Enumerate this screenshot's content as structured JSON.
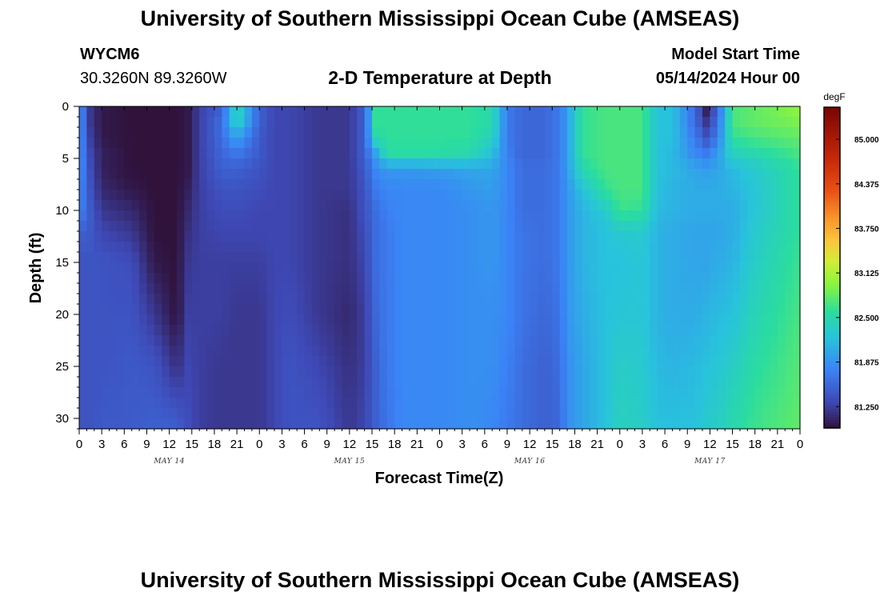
{
  "header": {
    "title": "University of Southern Mississippi Ocean Cube (AMSEAS)",
    "station_id": "WYCM6",
    "station_coords": "30.3260N  89.3260W",
    "model_start_label": "Model Start Time",
    "model_start_value": "05/14/2024 Hour 00"
  },
  "footer": {
    "title_repeat": "University of Southern Mississippi Ocean Cube (AMSEAS)"
  },
  "chart_data": {
    "type": "heatmap",
    "title": "2-D Temperature at Depth",
    "xlabel": "Forecast Time(Z)",
    "ylabel": "Depth (ft)",
    "x_unit_hours_range": [
      0,
      96
    ],
    "x_tick_labels": [
      "0",
      "3",
      "6",
      "9",
      "12",
      "15",
      "18",
      "21",
      "0",
      "3",
      "6",
      "9",
      "12",
      "15",
      "18",
      "21",
      "0",
      "3",
      "6",
      "9",
      "12",
      "15",
      "18",
      "21",
      "0",
      "3",
      "6",
      "9",
      "12",
      "15",
      "18",
      "21",
      "0"
    ],
    "day_labels": [
      "MAY 14",
      "MAY 15",
      "MAY 16",
      "MAY 17"
    ],
    "y_ticks": [
      "0",
      "5",
      "10",
      "15",
      "20",
      "25",
      "30"
    ],
    "ylim": [
      0,
      31
    ],
    "colorbar": {
      "unit": "degF",
      "range": [
        80.95,
        85.45
      ],
      "ticks": [
        "85.000",
        "84.375",
        "83.750",
        "83.125",
        "82.500",
        "81.875",
        "81.250"
      ]
    },
    "grid_description": "temperature field (degF) sampled on time (hours 0-96) x depth (ft 0-31)",
    "time_hours": [
      0,
      1.5,
      3,
      7,
      10,
      13,
      14.5,
      16,
      19,
      21,
      24,
      26,
      28,
      32,
      36,
      38,
      39.5,
      41,
      43,
      48,
      52,
      55,
      57,
      59,
      62,
      64,
      65,
      67,
      70,
      72,
      75,
      77,
      79,
      82,
      83.5,
      85,
      87,
      90,
      96
    ],
    "depth_ft": [
      0,
      1.5,
      3,
      4.5,
      6,
      8,
      10,
      12,
      15,
      20,
      25,
      31
    ],
    "profiles": [
      [
        81.9,
        81.9,
        81.9,
        81.9,
        81.9,
        81.8,
        81.8,
        81.5,
        81.4,
        81.4,
        81.4,
        81.4
      ],
      [
        81.2,
        81.2,
        81.25,
        81.3,
        81.35,
        81.4,
        81.45,
        81.45,
        81.4,
        81.4,
        81.4,
        81.4
      ],
      [
        81.0,
        81.0,
        81.0,
        81.05,
        81.05,
        81.1,
        81.2,
        81.3,
        81.4,
        81.4,
        81.4,
        81.45
      ],
      [
        80.95,
        80.95,
        80.95,
        80.95,
        80.95,
        81.0,
        81.1,
        81.2,
        81.35,
        81.4,
        81.45,
        81.45
      ],
      [
        80.95,
        80.95,
        80.95,
        80.95,
        80.95,
        80.95,
        80.95,
        80.95,
        81.0,
        81.2,
        81.4,
        81.5
      ],
      [
        80.95,
        80.95,
        80.95,
        80.95,
        80.95,
        80.95,
        80.95,
        80.95,
        80.95,
        80.95,
        81.15,
        81.5
      ],
      [
        81.0,
        81.0,
        81.0,
        81.0,
        81.0,
        81.05,
        81.1,
        81.15,
        81.2,
        81.25,
        81.3,
        81.35
      ],
      [
        81.25,
        81.25,
        81.25,
        81.25,
        81.25,
        81.25,
        81.25,
        81.25,
        81.25,
        81.25,
        81.25,
        81.25
      ],
      [
        81.5,
        81.6,
        81.6,
        81.55,
        81.5,
        81.4,
        81.35,
        81.3,
        81.25,
        81.25,
        81.2,
        81.2
      ],
      [
        82.5,
        82.4,
        82.0,
        81.7,
        81.5,
        81.4,
        81.35,
        81.3,
        81.25,
        81.2,
        81.2,
        81.2
      ],
      [
        81.5,
        81.5,
        81.45,
        81.45,
        81.4,
        81.35,
        81.3,
        81.3,
        81.25,
        81.2,
        81.2,
        81.2
      ],
      [
        81.3,
        81.3,
        81.3,
        81.3,
        81.3,
        81.3,
        81.3,
        81.3,
        81.3,
        81.3,
        81.3,
        81.3
      ],
      [
        81.3,
        81.3,
        81.3,
        81.3,
        81.3,
        81.3,
        81.3,
        81.3,
        81.3,
        81.35,
        81.4,
        81.4
      ],
      [
        81.2,
        81.2,
        81.2,
        81.2,
        81.2,
        81.2,
        81.2,
        81.2,
        81.2,
        81.2,
        81.3,
        81.4
      ],
      [
        81.2,
        81.2,
        81.2,
        81.2,
        81.2,
        81.2,
        81.15,
        81.15,
        81.15,
        81.1,
        81.15,
        81.2
      ],
      [
        81.5,
        81.5,
        81.5,
        81.5,
        81.45,
        81.4,
        81.4,
        81.35,
        81.3,
        81.25,
        81.25,
        81.3
      ],
      [
        82.6,
        82.6,
        82.5,
        82.0,
        81.8,
        81.7,
        81.6,
        81.6,
        81.6,
        81.55,
        81.5,
        81.5
      ],
      [
        82.6,
        82.6,
        82.6,
        82.55,
        81.9,
        81.8,
        81.75,
        81.7,
        81.7,
        81.7,
        81.7,
        81.65
      ],
      [
        82.6,
        82.6,
        82.6,
        82.55,
        81.9,
        81.8,
        81.8,
        81.8,
        81.8,
        81.8,
        81.8,
        81.8
      ],
      [
        82.6,
        82.6,
        82.6,
        82.55,
        81.95,
        81.8,
        81.8,
        81.8,
        81.8,
        81.8,
        81.8,
        81.8
      ],
      [
        82.6,
        82.6,
        82.6,
        82.5,
        82.0,
        81.9,
        81.85,
        81.85,
        81.85,
        81.85,
        81.85,
        81.85
      ],
      [
        82.5,
        82.5,
        82.4,
        82.2,
        82.0,
        81.95,
        81.9,
        81.9,
        81.9,
        81.85,
        81.85,
        81.8
      ],
      [
        81.7,
        81.7,
        81.7,
        81.75,
        81.8,
        81.8,
        81.8,
        81.8,
        81.8,
        81.8,
        81.75,
        81.7
      ],
      [
        81.55,
        81.55,
        81.55,
        81.55,
        81.6,
        81.6,
        81.6,
        81.65,
        81.65,
        81.65,
        81.6,
        81.6
      ],
      [
        81.55,
        81.55,
        81.55,
        81.55,
        81.6,
        81.6,
        81.6,
        81.6,
        81.6,
        81.55,
        81.5,
        81.5
      ],
      [
        81.7,
        81.7,
        81.7,
        81.7,
        81.7,
        81.7,
        81.7,
        81.7,
        81.7,
        81.65,
        81.6,
        81.55
      ],
      [
        81.95,
        81.95,
        81.95,
        81.95,
        81.95,
        81.9,
        81.9,
        81.9,
        81.9,
        81.9,
        81.85,
        81.85
      ],
      [
        82.6,
        82.6,
        82.6,
        82.6,
        82.5,
        82.2,
        82.1,
        82.1,
        82.1,
        82.05,
        82.0,
        82.0
      ],
      [
        82.7,
        82.7,
        82.7,
        82.7,
        82.7,
        82.6,
        82.3,
        82.2,
        82.2,
        82.2,
        82.2,
        82.2
      ],
      [
        82.7,
        82.7,
        82.7,
        82.7,
        82.7,
        82.7,
        82.65,
        82.3,
        82.2,
        82.25,
        82.35,
        82.4
      ],
      [
        82.7,
        82.7,
        82.7,
        82.7,
        82.7,
        82.7,
        82.6,
        82.3,
        82.25,
        82.25,
        82.3,
        82.35
      ],
      [
        82.2,
        82.2,
        82.2,
        82.2,
        82.2,
        82.2,
        82.15,
        82.1,
        82.1,
        82.1,
        82.15,
        82.2
      ],
      [
        82.2,
        82.2,
        82.2,
        82.15,
        82.15,
        82.1,
        82.1,
        82.05,
        82.05,
        82.05,
        82.1,
        82.2
      ],
      [
        81.6,
        81.6,
        81.7,
        81.8,
        82.0,
        82.05,
        82.05,
        82.0,
        82.0,
        82.05,
        82.15,
        82.2
      ],
      [
        81.0,
        81.2,
        81.4,
        81.7,
        81.95,
        82.05,
        82.05,
        82.0,
        82.0,
        82.1,
        82.2,
        82.3
      ],
      [
        81.5,
        81.6,
        81.7,
        81.9,
        82.0,
        82.05,
        82.05,
        82.0,
        82.05,
        82.15,
        82.25,
        82.35
      ],
      [
        82.7,
        82.7,
        82.6,
        82.4,
        82.15,
        82.1,
        82.05,
        82.05,
        82.1,
        82.2,
        82.35,
        82.5
      ],
      [
        82.8,
        82.8,
        82.7,
        82.5,
        82.3,
        82.25,
        82.25,
        82.3,
        82.35,
        82.45,
        82.55,
        82.65
      ],
      [
        83.0,
        82.9,
        82.8,
        82.7,
        82.6,
        82.6,
        82.6,
        82.6,
        82.65,
        82.7,
        82.75,
        82.8
      ]
    ]
  }
}
